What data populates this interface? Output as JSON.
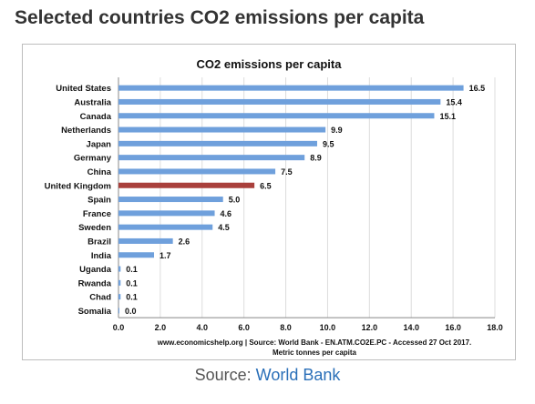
{
  "page": {
    "heading": "Selected countries CO2 emissions per capita",
    "source_prefix": "Source: ",
    "source_link": "World Bank"
  },
  "colors": {
    "bar": "#6fa0dc",
    "highlight": "#a9403c",
    "gridline": "#dcdcdc"
  },
  "chart_data": {
    "type": "bar",
    "orientation": "horizontal",
    "title": "CO2 emissions per capita",
    "categories": [
      "United States",
      "Australia",
      "Canada",
      "Netherlands",
      "Japan",
      "Germany",
      "China",
      "United Kingdom",
      "Spain",
      "France",
      "Sweden",
      "Brazil",
      "India",
      "Uganda",
      "Rwanda",
      "Chad",
      "Somalia"
    ],
    "values": [
      16.5,
      15.4,
      15.1,
      9.9,
      9.5,
      8.9,
      7.5,
      6.5,
      5.0,
      4.6,
      4.5,
      2.6,
      1.7,
      0.1,
      0.1,
      0.1,
      0.0
    ],
    "value_labels": [
      "16.5",
      "15.4",
      "15.1",
      "9.9",
      "9.5",
      "8.9",
      "7.5",
      "6.5",
      "5.0",
      "4.6",
      "4.5",
      "2.6",
      "1.7",
      "0.1",
      "0.1",
      "0.1",
      "0.0"
    ],
    "highlight": "United Kingdom",
    "xlim": [
      0,
      18
    ],
    "xticks": [
      "0.0",
      "2.0",
      "4.0",
      "6.0",
      "8.0",
      "10.0",
      "12.0",
      "14.0",
      "16.0",
      "18.0"
    ],
    "grid": "vertical",
    "footnote_1": "www.economicshelp.org | Source: World Bank - EN.ATM.CO2E.PC - Accessed 27 Oct 2017.",
    "footnote_2": "Metric tonnes per capita"
  }
}
